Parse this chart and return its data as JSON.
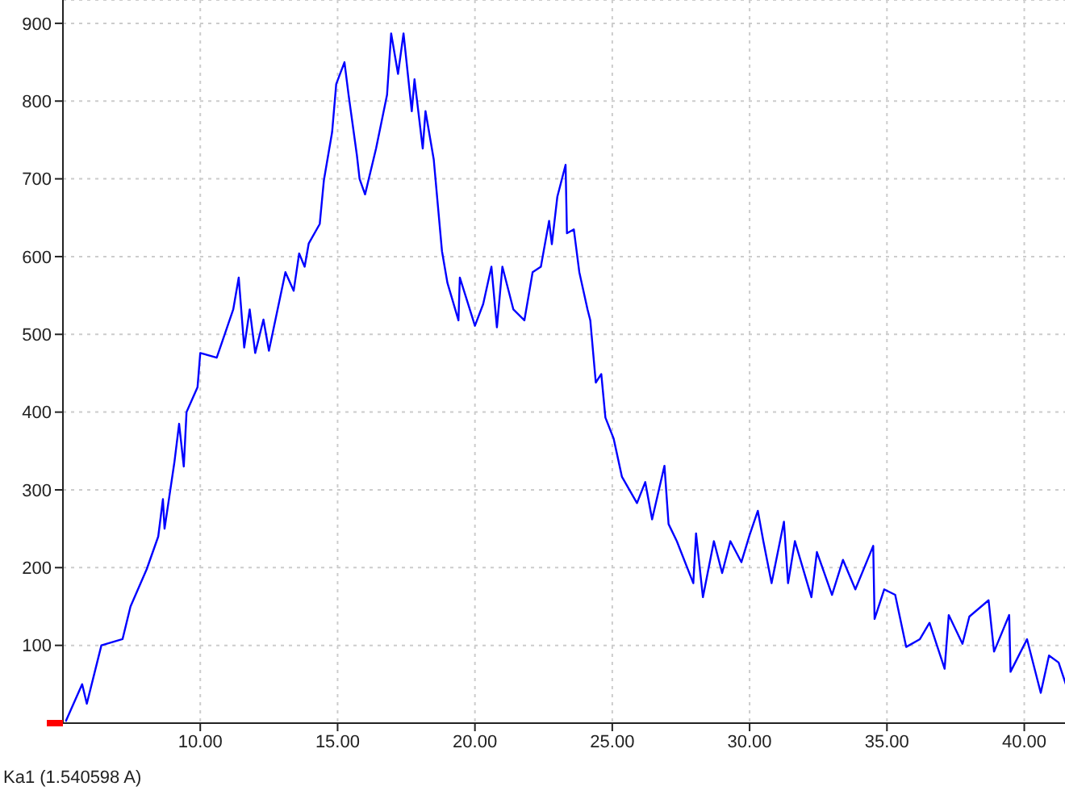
{
  "chart_data": {
    "type": "line",
    "x": [
      5.1,
      5.7,
      5.87,
      6.4,
      7.17,
      7.46,
      8.05,
      8.47,
      8.64,
      8.7,
      9.06,
      9.23,
      9.4,
      9.5,
      9.9,
      10.0,
      10.6,
      11.2,
      11.4,
      11.6,
      11.8,
      12.0,
      12.3,
      12.5,
      13.1,
      13.4,
      13.6,
      13.8,
      13.95,
      14.35,
      14.5,
      14.8,
      14.95,
      15.25,
      15.4,
      15.7,
      15.8,
      16.0,
      16.4,
      16.8,
      16.95,
      17.2,
      17.4,
      17.7,
      17.8,
      18.1,
      18.2,
      18.5,
      18.8,
      19.0,
      19.4,
      19.45,
      20.0,
      20.3,
      20.6,
      20.8,
      21.0,
      21.4,
      21.8,
      22.1,
      22.4,
      22.7,
      22.8,
      23.0,
      23.3,
      23.35,
      23.6,
      23.8,
      24.1,
      24.2,
      24.4,
      24.6,
      24.75,
      25.05,
      25.35,
      25.9,
      26.2,
      26.45,
      26.9,
      27.05,
      27.35,
      27.95,
      28.05,
      28.3,
      28.7,
      29.0,
      29.3,
      29.7,
      30.0,
      30.3,
      30.5,
      30.8,
      31.25,
      31.4,
      31.65,
      32.25,
      32.45,
      33.0,
      33.4,
      33.85,
      34.5,
      34.55,
      34.9,
      35.3,
      35.7,
      36.2,
      36.55,
      37.1,
      37.25,
      37.75,
      38.0,
      38.7,
      38.9,
      39.45,
      39.5,
      40.1,
      40.6,
      40.9,
      41.25,
      41.55
    ],
    "series": [
      {
        "color": "#0000ff",
        "values": [
          2,
          50,
          25,
          100,
          108,
          150,
          198,
          240,
          288,
          250,
          336,
          385,
          330,
          400,
          432,
          476,
          470,
          532,
          573,
          483,
          532,
          476,
          519,
          479,
          580,
          556,
          604,
          587,
          617,
          642,
          698,
          760,
          822,
          850,
          808,
          731,
          700,
          680,
          739,
          808,
          887,
          835,
          887,
          787,
          828,
          739,
          787,
          725,
          607,
          566,
          518,
          573,
          511,
          539,
          587,
          509,
          587,
          532,
          518,
          580,
          587,
          646,
          616,
          677,
          718,
          630,
          635,
          580,
          532,
          518,
          438,
          449,
          393,
          366,
          317,
          283,
          310,
          262,
          331,
          256,
          234,
          180,
          244,
          162,
          234,
          193,
          234,
          207,
          242,
          273,
          234,
          180,
          259,
          180,
          234,
          162,
          220,
          165,
          210,
          172,
          228,
          134,
          172,
          165,
          98,
          108,
          129,
          70,
          139,
          102,
          137,
          158,
          92,
          139,
          66,
          108,
          39,
          87,
          78,
          46
        ]
      }
    ],
    "xlim": [
      5,
      41.6
    ],
    "xticks": [
      {
        "value": 10,
        "label": "10.00"
      },
      {
        "value": 15,
        "label": "15.00"
      },
      {
        "value": 20,
        "label": "20.00"
      },
      {
        "value": 25,
        "label": "25.00"
      },
      {
        "value": 30,
        "label": "30.00"
      },
      {
        "value": 35,
        "label": "35.00"
      },
      {
        "value": 40,
        "label": "40.00"
      }
    ],
    "ylim": [
      0,
      930
    ],
    "yticks": [
      100,
      200,
      300,
      400,
      500,
      600,
      700,
      800,
      900
    ],
    "grid": true,
    "marker": "none",
    "line_style": "solid",
    "annotations": [
      "Ka1 (1.540598 A)"
    ]
  }
}
